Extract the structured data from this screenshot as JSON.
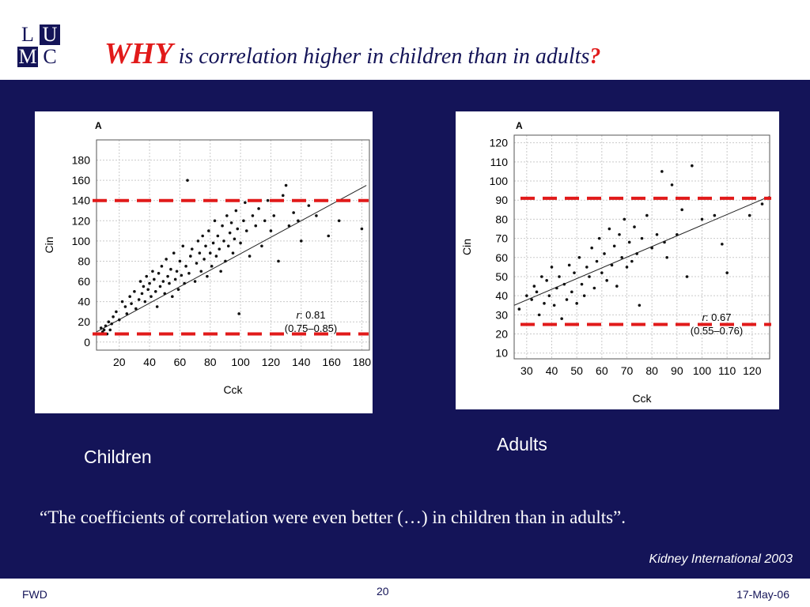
{
  "header": {
    "logo": [
      "L",
      "U",
      "M",
      "C"
    ],
    "title_emphasis": "WHY",
    "title_rest": "is correlation higher in children than in adults",
    "title_mark": "?"
  },
  "captions": {
    "children": "Children",
    "adults": "Adults"
  },
  "quote": "“The coefficients of correlation were even better (…) in children than in adults”.",
  "source": "Kidney International 2003",
  "footer": {
    "left": "FWD",
    "page": "20",
    "date": "17-May-06"
  },
  "colors": {
    "background": "#141458",
    "accent": "#e11a1a",
    "text": "#ffffff"
  },
  "chart_data": [
    {
      "type": "scatter",
      "panel_label": "A",
      "xlabel": "Cck",
      "ylabel": "Cin",
      "xlim": [
        5,
        185
      ],
      "ylim": [
        -8,
        200
      ],
      "xticks": [
        20,
        40,
        60,
        80,
        100,
        120,
        140,
        160,
        180
      ],
      "yticks": [
        0,
        20,
        40,
        60,
        80,
        100,
        120,
        140,
        160,
        180
      ],
      "grid": true,
      "r_text": "0.81",
      "ci_text": "(0.75–0.85)",
      "regression": {
        "x": [
          5,
          183
        ],
        "y": [
          10,
          155
        ]
      },
      "threshold_lines": [
        140,
        8
      ],
      "points": [
        [
          8,
          14
        ],
        [
          9,
          10
        ],
        [
          10,
          12
        ],
        [
          11,
          16
        ],
        [
          12,
          8
        ],
        [
          13,
          20
        ],
        [
          14,
          12
        ],
        [
          15,
          18
        ],
        [
          16,
          25
        ],
        [
          18,
          30
        ],
        [
          20,
          22
        ],
        [
          22,
          40
        ],
        [
          24,
          35
        ],
        [
          25,
          28
        ],
        [
          27,
          45
        ],
        [
          28,
          38
        ],
        [
          30,
          50
        ],
        [
          31,
          33
        ],
        [
          33,
          42
        ],
        [
          34,
          60
        ],
        [
          35,
          48
        ],
        [
          36,
          55
        ],
        [
          37,
          40
        ],
        [
          38,
          65
        ],
        [
          39,
          52
        ],
        [
          40,
          58
        ],
        [
          41,
          45
        ],
        [
          42,
          70
        ],
        [
          43,
          62
        ],
        [
          44,
          50
        ],
        [
          45,
          35
        ],
        [
          46,
          68
        ],
        [
          47,
          55
        ],
        [
          48,
          75
        ],
        [
          49,
          60
        ],
        [
          50,
          48
        ],
        [
          51,
          82
        ],
        [
          52,
          65
        ],
        [
          53,
          58
        ],
        [
          54,
          72
        ],
        [
          55,
          45
        ],
        [
          56,
          88
        ],
        [
          57,
          62
        ],
        [
          58,
          70
        ],
        [
          59,
          52
        ],
        [
          60,
          80
        ],
        [
          61,
          66
        ],
        [
          62,
          95
        ],
        [
          63,
          58
        ],
        [
          64,
          75
        ],
        [
          65,
          160
        ],
        [
          66,
          68
        ],
        [
          67,
          85
        ],
        [
          68,
          92
        ],
        [
          70,
          60
        ],
        [
          71,
          78
        ],
        [
          72,
          100
        ],
        [
          73,
          88
        ],
        [
          74,
          70
        ],
        [
          75,
          105
        ],
        [
          76,
          82
        ],
        [
          77,
          95
        ],
        [
          78,
          65
        ],
        [
          79,
          110
        ],
        [
          80,
          88
        ],
        [
          81,
          75
        ],
        [
          82,
          98
        ],
        [
          83,
          120
        ],
        [
          84,
          85
        ],
        [
          85,
          105
        ],
        [
          86,
          92
        ],
        [
          87,
          70
        ],
        [
          88,
          115
        ],
        [
          89,
          100
        ],
        [
          90,
          80
        ],
        [
          91,
          125
        ],
        [
          92,
          95
        ],
        [
          93,
          108
        ],
        [
          94,
          118
        ],
        [
          95,
          88
        ],
        [
          96,
          102
        ],
        [
          97,
          130
        ],
        [
          98,
          112
        ],
        [
          99,
          28
        ],
        [
          100,
          98
        ],
        [
          102,
          120
        ],
        [
          103,
          138
        ],
        [
          104,
          110
        ],
        [
          106,
          85
        ],
        [
          108,
          125
        ],
        [
          110,
          115
        ],
        [
          112,
          132
        ],
        [
          114,
          95
        ],
        [
          116,
          120
        ],
        [
          118,
          140
        ],
        [
          120,
          110
        ],
        [
          122,
          125
        ],
        [
          125,
          80
        ],
        [
          128,
          145
        ],
        [
          130,
          155
        ],
        [
          132,
          115
        ],
        [
          135,
          128
        ],
        [
          138,
          120
        ],
        [
          140,
          100
        ],
        [
          145,
          135
        ],
        [
          150,
          125
        ],
        [
          155,
          140
        ],
        [
          158,
          105
        ],
        [
          165,
          120
        ],
        [
          180,
          112
        ]
      ]
    },
    {
      "type": "scatter",
      "panel_label": "A",
      "xlabel": "Cck",
      "ylabel": "Cin",
      "xlim": [
        25,
        127
      ],
      "ylim": [
        7,
        124
      ],
      "xticks": [
        30,
        40,
        50,
        60,
        70,
        80,
        90,
        100,
        110,
        120
      ],
      "yticks": [
        10,
        20,
        30,
        40,
        50,
        60,
        70,
        80,
        90,
        100,
        110,
        120
      ],
      "grid": true,
      "r_text": "0.67",
      "ci_text": "(0.55–0.76)",
      "regression": {
        "x": [
          25,
          127
        ],
        "y": [
          35,
          92
        ]
      },
      "threshold_lines": [
        91,
        25
      ],
      "points": [
        [
          27,
          33
        ],
        [
          30,
          40
        ],
        [
          32,
          38
        ],
        [
          33,
          45
        ],
        [
          34,
          42
        ],
        [
          35,
          30
        ],
        [
          36,
          50
        ],
        [
          37,
          36
        ],
        [
          38,
          48
        ],
        [
          39,
          40
        ],
        [
          40,
          55
        ],
        [
          41,
          35
        ],
        [
          42,
          44
        ],
        [
          43,
          50
        ],
        [
          44,
          28
        ],
        [
          45,
          46
        ],
        [
          46,
          38
        ],
        [
          47,
          56
        ],
        [
          48,
          42
        ],
        [
          49,
          52
        ],
        [
          50,
          36
        ],
        [
          51,
          60
        ],
        [
          52,
          46
        ],
        [
          53,
          40
        ],
        [
          54,
          55
        ],
        [
          55,
          50
        ],
        [
          56,
          65
        ],
        [
          57,
          44
        ],
        [
          58,
          58
        ],
        [
          59,
          70
        ],
        [
          60,
          52
        ],
        [
          61,
          62
        ],
        [
          62,
          48
        ],
        [
          63,
          75
        ],
        [
          64,
          56
        ],
        [
          65,
          66
        ],
        [
          66,
          45
        ],
        [
          67,
          72
        ],
        [
          68,
          60
        ],
        [
          69,
          80
        ],
        [
          70,
          55
        ],
        [
          71,
          68
        ],
        [
          72,
          58
        ],
        [
          73,
          76
        ],
        [
          74,
          62
        ],
        [
          75,
          35
        ],
        [
          76,
          70
        ],
        [
          78,
          82
        ],
        [
          80,
          65
        ],
        [
          82,
          72
        ],
        [
          84,
          105
        ],
        [
          85,
          68
        ],
        [
          86,
          60
        ],
        [
          88,
          98
        ],
        [
          90,
          72
        ],
        [
          92,
          85
        ],
        [
          94,
          50
        ],
        [
          96,
          108
        ],
        [
          100,
          80
        ],
        [
          105,
          82
        ],
        [
          108,
          67
        ],
        [
          110,
          52
        ],
        [
          119,
          82
        ],
        [
          124,
          88
        ]
      ]
    }
  ]
}
